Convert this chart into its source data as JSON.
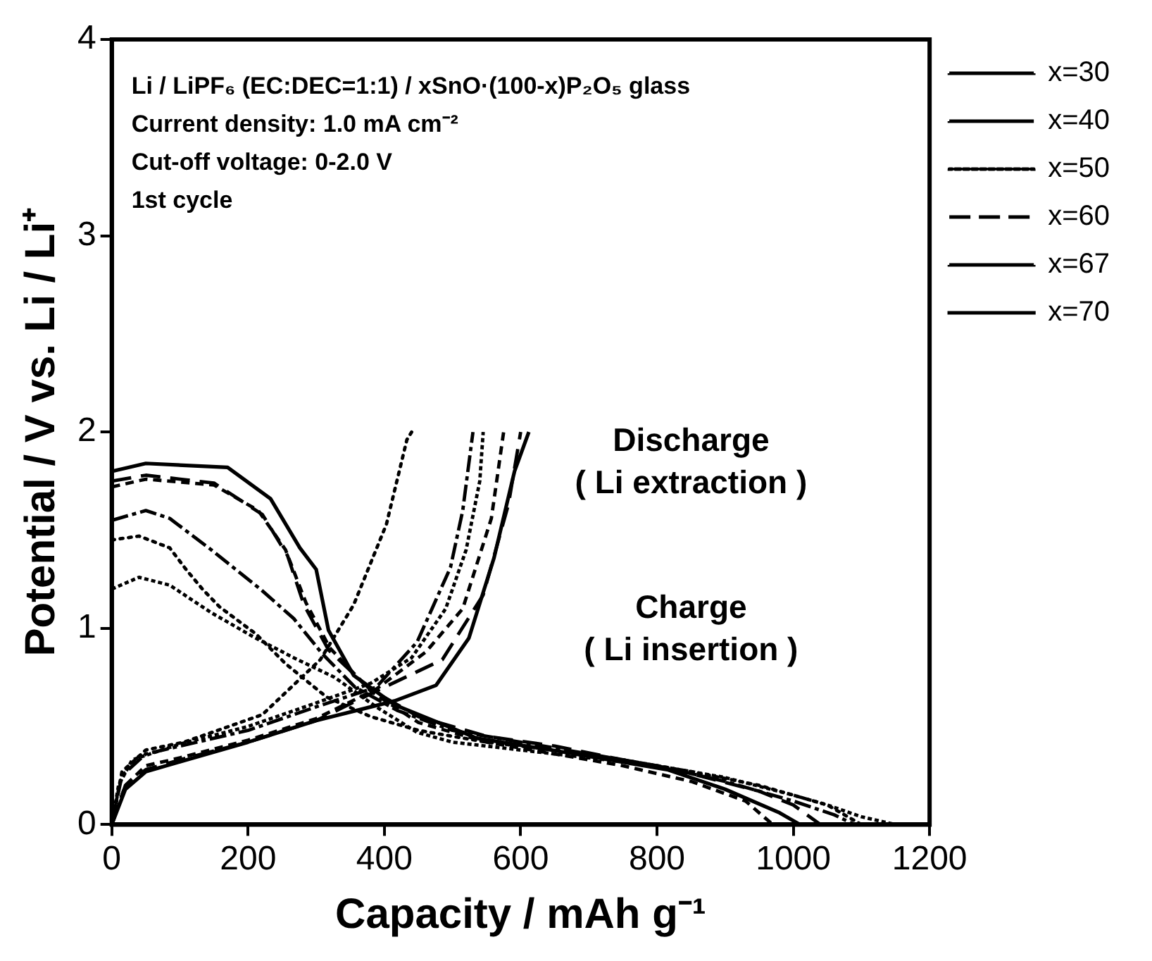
{
  "chart_data": {
    "type": "line",
    "xlabel": "Capacity / mAh g⁻¹",
    "ylabel": "Potential / V vs. Li / Li⁺",
    "xlim": [
      0,
      1200
    ],
    "xticks": [
      0,
      200,
      400,
      600,
      800,
      1000,
      1200
    ],
    "ylim": [
      0,
      4
    ],
    "yticks": [
      0,
      1,
      2,
      3,
      4
    ],
    "grid": false,
    "legend": "top right",
    "marker": "none",
    "annotations": [
      "Li / LiPF₆ (EC:DEC=1:1) / xSnO·(100-x)P₂O₅ glass",
      "Current density: 1.0 mA cm⁻²",
      "Cut-off voltage: 0-2.0 V",
      "1st cycle",
      "Discharge\n( Li extraction )",
      "Charge\n( Li insertion )"
    ],
    "series": [
      {
        "name": "x=30",
        "color": "#000000",
        "line_style": "dashed",
        "x": [
          0,
          40,
          85,
          146,
          206,
          267,
          327,
          388,
          448,
          500,
          600,
          700,
          800,
          900,
          1000,
          1050,
          1100,
          1150
        ],
        "values": [
          1.2,
          1.26,
          1.22,
          1.08,
          0.96,
          0.85,
          0.75,
          0.6,
          0.47,
          0.42,
          0.38,
          0.34,
          0.3,
          0.24,
          0.15,
          0.1,
          0.04,
          0
        ]
      },
      {
        "color": "#000000",
        "line_style": "dashed",
        "x": [
          0,
          10,
          30,
          100,
          200,
          300,
          380,
          440,
          490,
          520,
          540,
          545
        ],
        "values": [
          0,
          0.2,
          0.33,
          0.41,
          0.5,
          0.62,
          0.72,
          0.85,
          1.1,
          1.4,
          1.75,
          2.0
        ]
      },
      {
        "name": "x=40",
        "color": "#000000",
        "line_style": "dashed",
        "x": [
          0,
          50,
          85,
          146,
          218,
          267,
          309,
          357,
          420,
          500,
          600,
          700,
          800,
          900,
          1000,
          1060,
          1090
        ],
        "values": [
          1.55,
          1.6,
          1.56,
          1.4,
          1.2,
          1.05,
          0.87,
          0.7,
          0.58,
          0.48,
          0.42,
          0.36,
          0.3,
          0.22,
          0.12,
          0.05,
          0
        ]
      },
      {
        "color": "#000000",
        "line_style": "dashed",
        "x": [
          0,
          15,
          50,
          100,
          200,
          300,
          388,
          448,
          497,
          515,
          530
        ],
        "values": [
          0,
          0.25,
          0.36,
          0.4,
          0.48,
          0.6,
          0.7,
          0.93,
          1.31,
          1.6,
          2.0
        ]
      },
      {
        "name": "x=50",
        "color": "#000000",
        "line_style": "dotted",
        "x": [
          0,
          40,
          85,
          109,
          133,
          158,
          212,
          255,
          315,
          380,
          450,
          550,
          650,
          750,
          850,
          950,
          1050,
          1100
        ],
        "values": [
          1.45,
          1.47,
          1.41,
          1.3,
          1.2,
          1.11,
          0.97,
          0.82,
          0.65,
          0.55,
          0.48,
          0.42,
          0.38,
          0.33,
          0.27,
          0.2,
          0.1,
          0
        ]
      },
      {
        "color": "#000000",
        "line_style": "dotted",
        "x": [
          0,
          15,
          50,
          106,
          221,
          306,
          355,
          403,
          433,
          440
        ],
        "values": [
          0,
          0.27,
          0.38,
          0.42,
          0.56,
          0.84,
          1.12,
          1.53,
          1.96,
          2.0
        ]
      },
      {
        "name": "x=60",
        "color": "#000000",
        "line_style": "dashed",
        "x": [
          0,
          50,
          150,
          221,
          258,
          282,
          318,
          379,
          450,
          550,
          650,
          750,
          850,
          950,
          1000,
          1040
        ],
        "values": [
          1.75,
          1.78,
          1.74,
          1.58,
          1.37,
          1.12,
          0.89,
          0.69,
          0.55,
          0.45,
          0.4,
          0.33,
          0.26,
          0.17,
          0.1,
          0
        ]
      },
      {
        "color": "#000000",
        "line_style": "dashed",
        "x": [
          0,
          20,
          50,
          100,
          200,
          300,
          388,
          485,
          545,
          582,
          600
        ],
        "values": [
          0,
          0.2,
          0.28,
          0.33,
          0.42,
          0.53,
          0.68,
          0.84,
          1.17,
          1.63,
          2.0
        ]
      },
      {
        "name": "x=67",
        "color": "#000000",
        "line_style": "dashed",
        "x": [
          0,
          50,
          150,
          215,
          255,
          285,
          320,
          380,
          450,
          550,
          650,
          750,
          850,
          930,
          970
        ],
        "values": [
          1.72,
          1.76,
          1.73,
          1.6,
          1.4,
          1.13,
          0.9,
          0.68,
          0.52,
          0.42,
          0.36,
          0.3,
          0.22,
          0.12,
          0
        ]
      },
      {
        "color": "#000000",
        "line_style": "dashed",
        "x": [
          0,
          20,
          50,
          100,
          200,
          300,
          388,
          461,
          515,
          557,
          575
        ],
        "values": [
          0,
          0.2,
          0.3,
          0.34,
          0.43,
          0.54,
          0.69,
          0.88,
          1.1,
          1.56,
          2.0
        ]
      },
      {
        "name": "x=70",
        "color": "#000000",
        "line_style": "solid",
        "x": [
          0,
          50,
          170,
          233,
          276,
          300,
          318,
          355,
          415,
          536,
          645,
          815,
          900,
          980,
          1010
        ],
        "values": [
          1.8,
          1.84,
          1.82,
          1.66,
          1.41,
          1.3,
          0.99,
          0.76,
          0.61,
          0.44,
          0.38,
          0.28,
          0.18,
          0.06,
          0
        ]
      },
      {
        "color": "#000000",
        "line_style": "solid",
        "x": [
          0,
          20,
          50,
          100,
          200,
          300,
          415,
          476,
          524,
          561,
          591,
          612
        ],
        "values": [
          0,
          0.18,
          0.27,
          0.32,
          0.42,
          0.53,
          0.63,
          0.71,
          0.95,
          1.36,
          1.8,
          2.0
        ]
      }
    ]
  }
}
